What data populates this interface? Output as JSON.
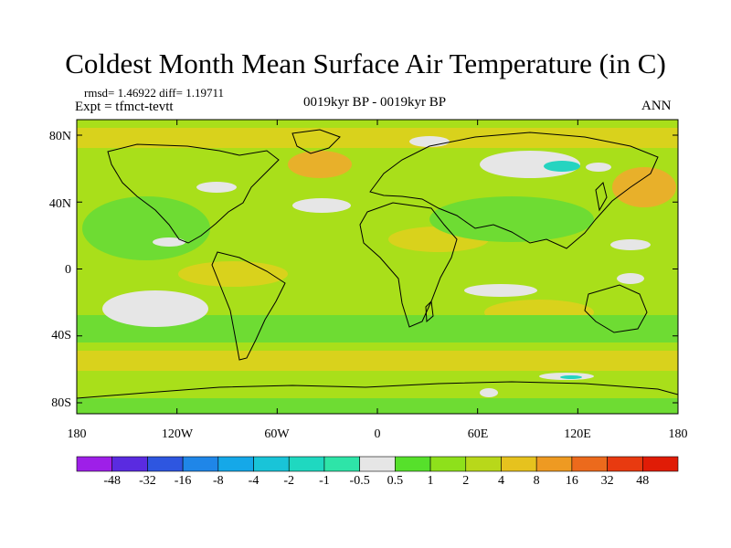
{
  "title": "Coldest Month Mean Surface Air Temperature (in C)",
  "stats": "rmsd= 1.46922  diff= 1.19711",
  "experiment": "Expt = tfmct-tevtt",
  "period": "0019kyr BP - 0019kyr BP",
  "season": "ANN",
  "lat_labels": [
    "80N",
    "40N",
    "0",
    "40S",
    "80S"
  ],
  "lon_labels": [
    "180",
    "120W",
    "60W",
    "0",
    "60E",
    "120E",
    "180"
  ],
  "colorbar": {
    "labels": [
      "-48",
      "-32",
      "-16",
      "-8",
      "-4",
      "-2",
      "-1",
      "-0.5",
      "0.5",
      "1",
      "2",
      "4",
      "8",
      "16",
      "32",
      "48"
    ],
    "colors": [
      "#9e1fe8",
      "#5a2be0",
      "#2e56e0",
      "#1f86e8",
      "#15a8e8",
      "#19c4d8",
      "#1fd8c0",
      "#2ee4a8",
      "#e6e6e6",
      "#56e02b",
      "#8ee01b",
      "#b8d81a",
      "#e6c21e",
      "#ee9a22",
      "#ec6a1c",
      "#e83a10",
      "#e01c06"
    ]
  },
  "field_colors": {
    "background": "#a9df1a",
    "warm": "#d9d21c",
    "warmer": "#e8b02a",
    "cool": "#6edc33",
    "near_zero": "#e6e6e6",
    "cold": "#25d4c0"
  }
}
